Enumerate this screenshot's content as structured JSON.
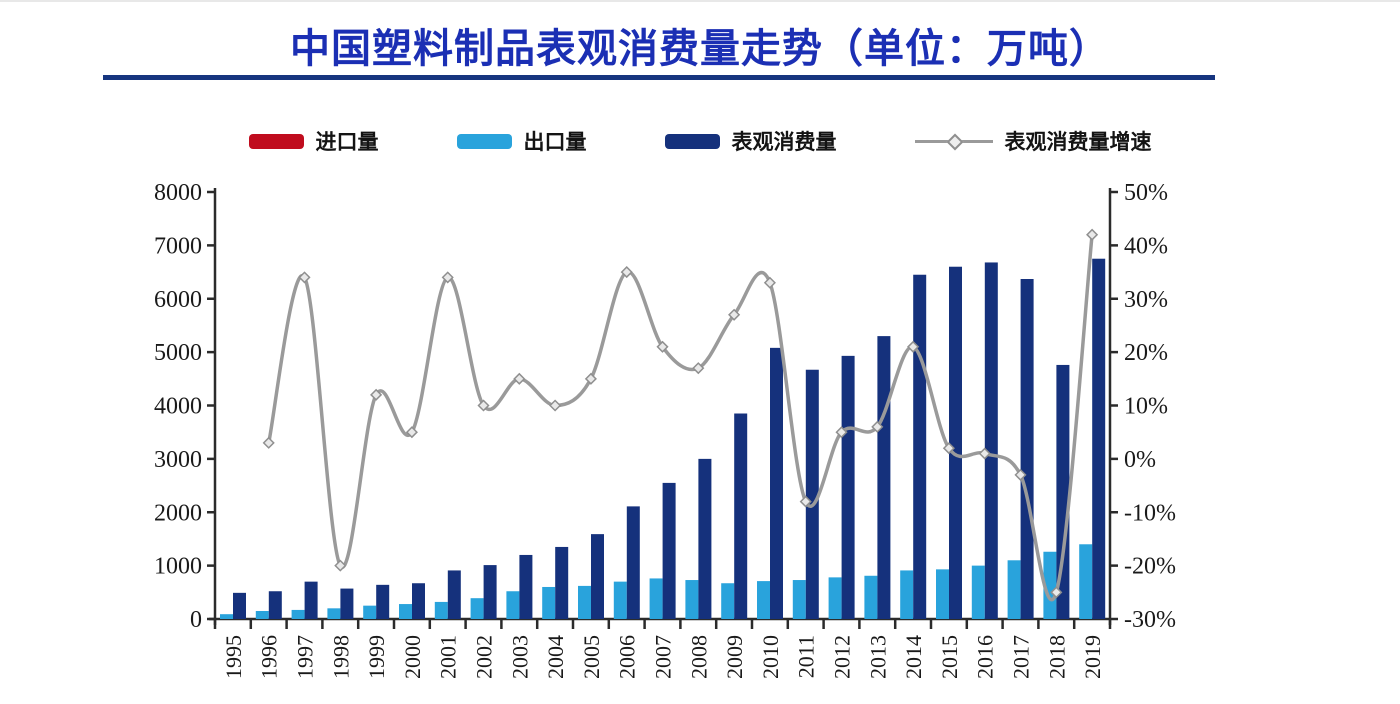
{
  "title": "中国塑料制品表观消费量走势（单位：万吨）",
  "legend": [
    {
      "key": "imports",
      "label": "进口量",
      "type": "bar",
      "color": "#c00c1e"
    },
    {
      "key": "exports",
      "label": "出口量",
      "type": "bar",
      "color": "#29a3dc"
    },
    {
      "key": "consumption",
      "label": "表观消费量",
      "type": "bar",
      "color": "#15317c"
    },
    {
      "key": "growth",
      "label": "表观消费量增速",
      "type": "line",
      "color": "#9a9a9a"
    }
  ],
  "chart_data": {
    "type": "bar",
    "subtype": "grouped-bars-with-line",
    "title": "中国塑料制品表观消费量走势（单位：万吨）",
    "categories": [
      1995,
      1996,
      1997,
      1998,
      1999,
      2000,
      2001,
      2002,
      2003,
      2004,
      2005,
      2006,
      2007,
      2008,
      2009,
      2010,
      2011,
      2012,
      2013,
      2014,
      2015,
      2016,
      2017,
      2018,
      2019
    ],
    "series": [
      {
        "name": "进口量",
        "type": "bar",
        "axis": "left",
        "color": "#c00c1e",
        "values": [
          0,
          0,
          0,
          0,
          0,
          0,
          0,
          0,
          0,
          0,
          0,
          0,
          0,
          0,
          0,
          0,
          0,
          0,
          0,
          0,
          0,
          0,
          0,
          0,
          0
        ]
      },
      {
        "name": "出口量",
        "type": "bar",
        "axis": "left",
        "color": "#29a3dc",
        "values": [
          90,
          150,
          170,
          200,
          250,
          280,
          320,
          390,
          520,
          600,
          620,
          700,
          760,
          730,
          670,
          710,
          730,
          780,
          810,
          910,
          930,
          1000,
          1100,
          1260,
          1400
        ]
      },
      {
        "name": "表观消费量",
        "type": "bar",
        "axis": "left",
        "color": "#15317c",
        "values": [
          490,
          520,
          700,
          570,
          640,
          670,
          910,
          1010,
          1200,
          1350,
          1590,
          2110,
          2550,
          3000,
          3850,
          5080,
          4670,
          4930,
          5300,
          6450,
          6600,
          6680,
          6370,
          4760,
          6750
        ]
      },
      {
        "name": "表观消费量增速",
        "type": "line",
        "axis": "right",
        "unit": "%",
        "color": "#9a9a9a",
        "values": [
          null,
          3,
          34,
          -20,
          12,
          5,
          34,
          10,
          15,
          10,
          15,
          35,
          21,
          17,
          27,
          33,
          -8,
          5,
          6,
          21,
          2,
          1,
          -3,
          -25,
          42
        ]
      }
    ],
    "left_axis": {
      "min": 0,
      "max": 8000,
      "step": 1000,
      "tick_labels": [
        "0",
        "1000",
        "2000",
        "3000",
        "4000",
        "5000",
        "6000",
        "7000",
        "8000"
      ]
    },
    "right_axis": {
      "min": -30,
      "max": 50,
      "step": 10,
      "tick_labels": [
        "-30%",
        "-20%",
        "-10%",
        "0%",
        "10%",
        "20%",
        "30%",
        "40%",
        "50%"
      ]
    },
    "grid": false,
    "legend_position": "top",
    "x_tick_label_rotation": -90
  }
}
